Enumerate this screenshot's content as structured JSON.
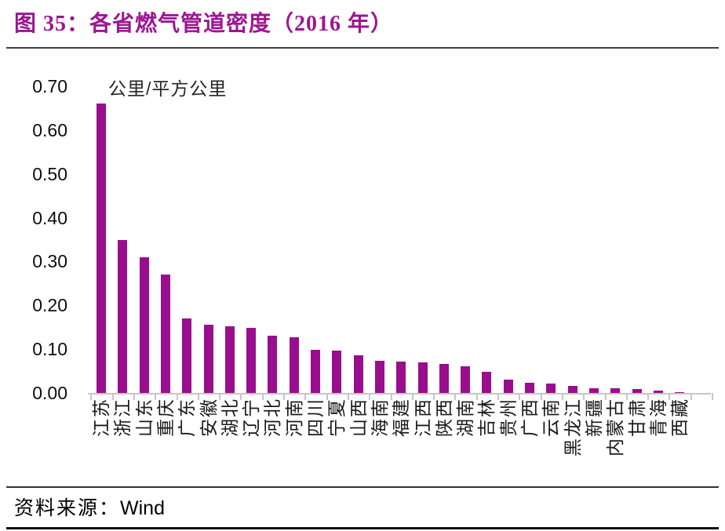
{
  "header": {
    "title": "图 35：各省燃气管道密度（2016 年）"
  },
  "chart_data": {
    "type": "bar",
    "title": "各省燃气管道密度（2016年）",
    "unit_label": "公里/平方公里",
    "bar_color": "#990E8D",
    "ylim": [
      0,
      0.7
    ],
    "y_ticks": [
      "0.70",
      "0.60",
      "0.50",
      "0.40",
      "0.30",
      "0.20",
      "0.10",
      "0.00"
    ],
    "grid": false,
    "legend": false,
    "categories": [
      "江苏",
      "浙江",
      "山东",
      "重庆",
      "广东",
      "安徽",
      "湖北",
      "辽宁",
      "河北",
      "河南",
      "四川",
      "宁夏",
      "山西",
      "海南",
      "福建",
      "江西",
      "陕西",
      "湖南",
      "吉林",
      "贵州",
      "广西",
      "云南",
      "黑龙江",
      "新疆",
      "内蒙古",
      "甘肃",
      "青海",
      "西藏"
    ],
    "values": [
      0.66,
      0.35,
      0.31,
      0.27,
      0.17,
      0.155,
      0.152,
      0.149,
      0.131,
      0.128,
      0.098,
      0.096,
      0.086,
      0.074,
      0.072,
      0.069,
      0.067,
      0.061,
      0.048,
      0.03,
      0.023,
      0.022,
      0.016,
      0.011,
      0.01,
      0.009,
      0.005,
      0.001
    ]
  },
  "footer": {
    "source_label": "资料来源：",
    "source_value": "Wind"
  }
}
